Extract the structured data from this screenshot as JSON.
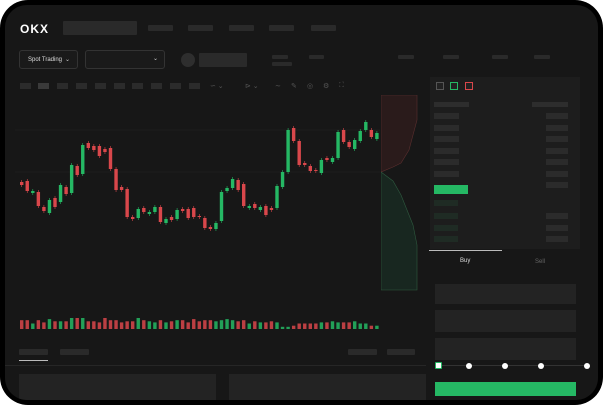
{
  "brand": {
    "logo": "OKX"
  },
  "toolbar": {
    "market_select": "Spot Trading",
    "pair_select": ""
  },
  "trade": {
    "tabs": [
      "Buy",
      "Sell"
    ],
    "active_tab": "Buy",
    "slider_value": 0,
    "submit_color": "#25b864"
  },
  "colors": {
    "up": "#25b864",
    "down": "#d9474b",
    "background": "#171717"
  },
  "candles": [
    [
      "d",
      218,
      215
    ],
    [
      "d",
      219,
      209
    ],
    [
      "u",
      207,
      209
    ],
    [
      "d",
      208,
      194
    ],
    [
      "d",
      193,
      189
    ],
    [
      "u",
      187,
      200
    ],
    [
      "d",
      202,
      193
    ],
    [
      "u",
      198,
      215
    ],
    [
      "d",
      213,
      206
    ],
    [
      "u",
      207,
      235
    ],
    [
      "d",
      234,
      225
    ],
    [
      "u",
      226,
      255
    ],
    [
      "d",
      257,
      252
    ],
    [
      "d",
      254,
      250
    ],
    [
      "d",
      254,
      244
    ],
    [
      "d",
      251,
      248
    ],
    [
      "d",
      252,
      231
    ],
    [
      "d",
      231,
      210
    ],
    [
      "d",
      213,
      210
    ],
    [
      "d",
      211,
      183
    ],
    [
      "d",
      183,
      181
    ],
    [
      "u",
      182,
      191
    ],
    [
      "d",
      192,
      188
    ],
    [
      "u",
      186,
      188
    ],
    [
      "u",
      188,
      193
    ],
    [
      "d",
      193,
      178
    ],
    [
      "u",
      177,
      181
    ],
    [
      "d",
      183,
      180
    ],
    [
      "u",
      181,
      190
    ],
    [
      "d",
      191,
      189
    ],
    [
      "d",
      191,
      182
    ],
    [
      "d",
      192,
      183
    ],
    [
      "d",
      184,
      183
    ],
    [
      "d",
      182,
      172
    ],
    [
      "d",
      173,
      171
    ],
    [
      "u",
      171,
      177
    ],
    [
      "u",
      179,
      208
    ],
    [
      "u",
      209,
      212
    ],
    [
      "u",
      212,
      221
    ],
    [
      "d",
      220,
      210
    ],
    [
      "d",
      216,
      194
    ],
    [
      "u",
      192,
      194
    ],
    [
      "d",
      196,
      192
    ],
    [
      "u",
      190,
      193
    ],
    [
      "d",
      194,
      185
    ],
    [
      "d",
      192,
      190
    ],
    [
      "u",
      192,
      214
    ],
    [
      "u",
      213,
      228
    ],
    [
      "u",
      228,
      270
    ],
    [
      "d",
      272,
      259
    ],
    [
      "d",
      259,
      235
    ],
    [
      "d",
      237,
      235
    ],
    [
      "d",
      234,
      229
    ],
    [
      "d",
      230,
      229
    ],
    [
      "u",
      227,
      240
    ],
    [
      "d",
      242,
      240
    ],
    [
      "u",
      238,
      242
    ],
    [
      "u",
      242,
      268
    ],
    [
      "d",
      270,
      258
    ],
    [
      "d",
      258,
      253
    ],
    [
      "u",
      251,
      260
    ],
    [
      "u",
      259,
      269
    ],
    [
      "u",
      270,
      278
    ],
    [
      "d",
      270,
      263
    ],
    [
      "u",
      261,
      267
    ]
  ],
  "volumes": [
    8,
    8,
    5,
    8,
    6,
    9,
    7,
    7,
    7,
    10,
    10,
    10,
    7,
    7,
    6,
    10,
    8,
    8,
    6,
    7,
    7,
    10,
    8,
    7,
    6,
    8,
    6,
    7,
    8,
    8,
    6,
    9,
    7,
    8,
    8,
    7,
    8,
    9,
    8,
    7,
    8,
    5,
    7,
    6,
    6,
    7,
    6,
    2,
    2,
    3,
    5,
    5,
    5,
    5,
    6,
    6,
    7,
    6,
    6,
    6,
    7,
    5,
    5,
    3,
    3
  ]
}
